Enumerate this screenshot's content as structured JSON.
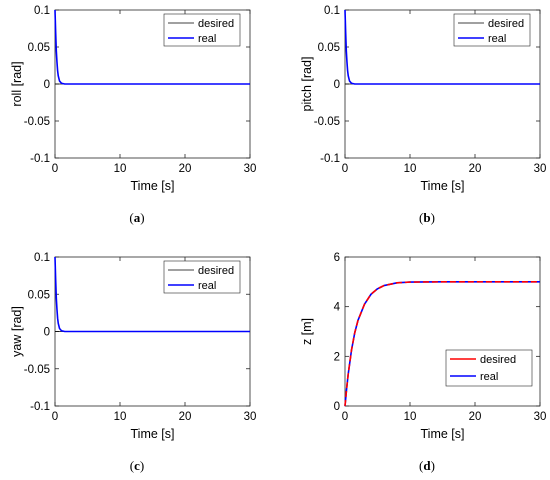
{
  "chart_data": [
    {
      "type": "line",
      "panel_label": "(a)",
      "xlabel": "Time [s]",
      "ylabel": "roll [rad]",
      "xlim": [
        0,
        30
      ],
      "ylim": [
        -0.1,
        0.1
      ],
      "xticks": [
        "0",
        "10",
        "20",
        "30"
      ],
      "yticks": [
        "-0.1",
        "-0.05",
        "0",
        "0.05",
        "0.1"
      ],
      "grid": false,
      "legend": "top-right",
      "series": [
        {
          "name": "desired",
          "color": "#000000",
          "x": [
            0,
            30
          ],
          "y": [
            0,
            0
          ]
        },
        {
          "name": "real",
          "color": "#0000ff",
          "x": [
            0,
            0.1,
            0.2,
            0.3,
            0.4,
            0.5,
            0.7,
            1.0,
            1.5,
            2.0,
            30
          ],
          "y": [
            0.1,
            0.07,
            0.045,
            0.03,
            0.018,
            0.011,
            0.004,
            0.001,
            0,
            0,
            0
          ]
        }
      ]
    },
    {
      "type": "line",
      "panel_label": "(b)",
      "xlabel": "Time [s]",
      "ylabel": "pitch [rad]",
      "xlim": [
        0,
        30
      ],
      "ylim": [
        -0.1,
        0.1
      ],
      "xticks": [
        "0",
        "10",
        "20",
        "30"
      ],
      "yticks": [
        "-0.1",
        "-0.05",
        "0",
        "0.05",
        "0.1"
      ],
      "grid": false,
      "legend": "top-right",
      "series": [
        {
          "name": "desired",
          "color": "#000000",
          "x": [
            0,
            30
          ],
          "y": [
            0,
            0
          ]
        },
        {
          "name": "real",
          "color": "#0000ff",
          "x": [
            0,
            0.1,
            0.2,
            0.3,
            0.4,
            0.5,
            0.7,
            1.0,
            1.5,
            2.0,
            30
          ],
          "y": [
            0.1,
            0.07,
            0.045,
            0.03,
            0.018,
            0.011,
            0.004,
            0.001,
            0,
            0,
            0
          ]
        }
      ]
    },
    {
      "type": "line",
      "panel_label": "(c)",
      "xlabel": "Time [s]",
      "ylabel": "yaw [rad]",
      "xlim": [
        0,
        30
      ],
      "ylim": [
        -0.1,
        0.1
      ],
      "xticks": [
        "0",
        "10",
        "20",
        "30"
      ],
      "yticks": [
        "-0.1",
        "-0.05",
        "0",
        "0.05",
        "0.1"
      ],
      "grid": false,
      "legend": "top-right",
      "series": [
        {
          "name": "desired",
          "color": "#000000",
          "x": [
            0,
            30
          ],
          "y": [
            0,
            0
          ]
        },
        {
          "name": "real",
          "color": "#0000ff",
          "x": [
            0,
            0.1,
            0.2,
            0.3,
            0.4,
            0.5,
            0.7,
            1.0,
            1.5,
            2.0,
            30
          ],
          "y": [
            0.1,
            0.07,
            0.045,
            0.03,
            0.018,
            0.011,
            0.004,
            0.001,
            0,
            0,
            0
          ]
        }
      ]
    },
    {
      "type": "line",
      "panel_label": "(d)",
      "xlabel": "Time [s]",
      "ylabel": "z [m]",
      "xlim": [
        0,
        30
      ],
      "ylim": [
        0,
        6
      ],
      "xticks": [
        "0",
        "10",
        "20",
        "30"
      ],
      "yticks": [
        "0",
        "2",
        "4",
        "6"
      ],
      "grid": false,
      "legend": "bottom-right",
      "series": [
        {
          "name": "desired",
          "color": "#ff0000",
          "x": [
            0,
            0.25,
            0.5,
            1,
            1.5,
            2,
            3,
            4,
            5,
            6,
            8,
            10,
            15,
            30
          ],
          "y": [
            0,
            0.7,
            1.3,
            2.25,
            2.95,
            3.45,
            4.1,
            4.5,
            4.72,
            4.85,
            4.96,
            4.99,
            5,
            5
          ]
        },
        {
          "name": "real",
          "color": "#0000ff",
          "x": [
            0,
            0.25,
            0.5,
            1,
            1.5,
            2,
            3,
            4,
            5,
            6,
            8,
            10,
            15,
            30
          ],
          "y": [
            0,
            0.7,
            1.3,
            2.25,
            2.95,
            3.45,
            4.1,
            4.5,
            4.72,
            4.85,
            4.96,
            4.99,
            5,
            5
          ]
        }
      ]
    }
  ]
}
